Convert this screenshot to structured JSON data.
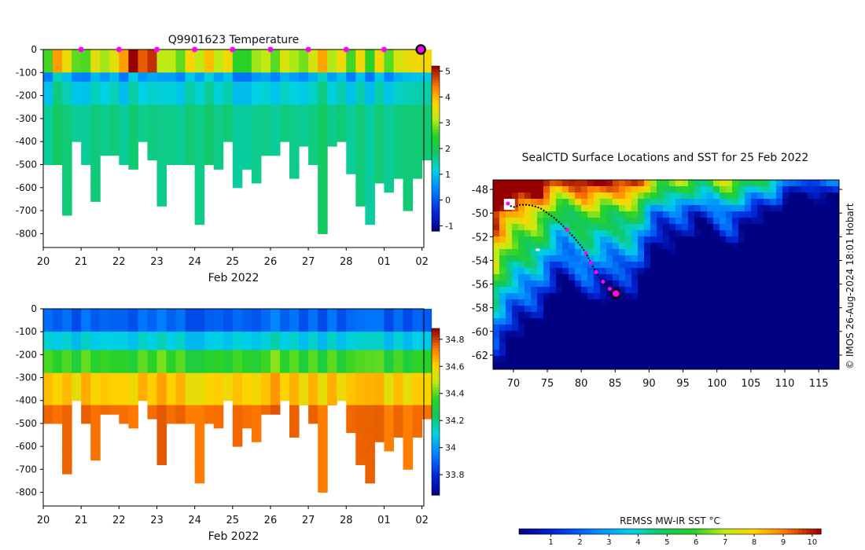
{
  "chart_data": [
    {
      "type": "heatmap",
      "title": "Q9901623  Temperature",
      "xlabel": "Feb 2022",
      "x_tick_labels": [
        "20",
        "21",
        "22",
        "23",
        "24",
        "25",
        "26",
        "27",
        "28",
        "01",
        "02"
      ],
      "x_range": [
        20,
        30.05
      ],
      "ylim": [
        0,
        -860
      ],
      "y_ticks": [
        0,
        -100,
        -200,
        -300,
        -400,
        -500,
        -600,
        -700,
        -800
      ],
      "colorbar": {
        "ticks": [
          -1,
          0,
          1,
          2,
          3,
          4,
          5
        ],
        "range": [
          -1.2,
          5.2
        ]
      },
      "profile_markers_day": [
        21,
        22,
        23,
        24,
        25,
        26,
        27,
        28,
        29
      ],
      "current_position_day": 29.97,
      "profiles": [
        {
          "day": 20.0,
          "depth": 490
        },
        {
          "day": 20.25,
          "depth": 490
        },
        {
          "day": 20.5,
          "depth": 720
        },
        {
          "day": 20.75,
          "depth": 390
        },
        {
          "day": 21.0,
          "depth": 490
        },
        {
          "day": 21.25,
          "depth": 660
        },
        {
          "day": 21.5,
          "depth": 450
        },
        {
          "day": 21.75,
          "depth": 450
        },
        {
          "day": 22.0,
          "depth": 490
        },
        {
          "day": 22.25,
          "depth": 520
        },
        {
          "day": 22.5,
          "depth": 400
        },
        {
          "day": 22.75,
          "depth": 470
        },
        {
          "day": 23.0,
          "depth": 670
        },
        {
          "day": 23.25,
          "depth": 490
        },
        {
          "day": 23.5,
          "depth": 500
        },
        {
          "day": 23.75,
          "depth": 500
        },
        {
          "day": 24.0,
          "depth": 750
        },
        {
          "day": 24.25,
          "depth": 500
        },
        {
          "day": 24.5,
          "depth": 520
        },
        {
          "day": 24.75,
          "depth": 390
        },
        {
          "day": 25.0,
          "depth": 600
        },
        {
          "day": 25.25,
          "depth": 520
        },
        {
          "day": 25.5,
          "depth": 580
        },
        {
          "day": 25.75,
          "depth": 450
        },
        {
          "day": 26.0,
          "depth": 450
        },
        {
          "day": 26.25,
          "depth": 400
        },
        {
          "day": 26.5,
          "depth": 560
        },
        {
          "day": 26.75,
          "depth": 410
        },
        {
          "day": 27.0,
          "depth": 490
        },
        {
          "day": 27.25,
          "depth": 790
        },
        {
          "day": 27.5,
          "depth": 420
        },
        {
          "day": 27.75,
          "depth": 400
        },
        {
          "day": 28.0,
          "depth": 530
        },
        {
          "day": 28.25,
          "depth": 680
        },
        {
          "day": 28.5,
          "depth": 760
        },
        {
          "day": 28.75,
          "depth": 570
        },
        {
          "day": 29.0,
          "depth": 620
        },
        {
          "day": 29.25,
          "depth": 560
        },
        {
          "day": 29.5,
          "depth": 700
        },
        {
          "day": 29.75,
          "depth": 560
        },
        {
          "day": 30.0,
          "depth": 480
        }
      ]
    },
    {
      "type": "heatmap",
      "title": "",
      "xlabel": "Feb 2022",
      "x_tick_labels": [
        "20",
        "21",
        "22",
        "23",
        "24",
        "25",
        "26",
        "27",
        "28",
        "01",
        "02"
      ],
      "x_range": [
        20,
        30.05
      ],
      "ylim": [
        0,
        -860
      ],
      "y_ticks": [
        0,
        -100,
        -200,
        -300,
        -400,
        -500,
        -600,
        -700,
        -800
      ],
      "colorbar": {
        "ticks": [
          33.8,
          34,
          34.2,
          34.4,
          34.6,
          34.8
        ],
        "range": [
          33.65,
          34.88
        ]
      }
    },
    {
      "type": "heatmap",
      "title": "SealCTD Surface Locations and SST for 25 Feb 2022",
      "xlabel": "",
      "ylabel": "",
      "x_ticks": [
        70,
        75,
        80,
        85,
        90,
        95,
        100,
        105,
        110,
        115
      ],
      "y_ticks": [
        -48,
        -50,
        -52,
        -54,
        -56,
        -58,
        -60,
        -62
      ],
      "xlim": [
        67,
        118
      ],
      "ylim": [
        -63.2,
        -47.2
      ],
      "track": [
        [
          69.2,
          -49.2
        ],
        [
          69.6,
          -49.4
        ],
        [
          70.2,
          -49.5
        ],
        [
          71.0,
          -49.3
        ],
        [
          72.0,
          -49.3
        ],
        [
          73.0,
          -49.4
        ],
        [
          74.0,
          -49.6
        ],
        [
          75.0,
          -50.0
        ],
        [
          76.0,
          -50.4
        ],
        [
          77.0,
          -50.9
        ],
        [
          78.0,
          -51.5
        ],
        [
          79.0,
          -52.1
        ],
        [
          80.0,
          -52.8
        ],
        [
          80.8,
          -53.5
        ],
        [
          81.5,
          -54.3
        ],
        [
          82.3,
          -55.1
        ],
        [
          83.2,
          -55.9
        ],
        [
          84.2,
          -56.4
        ],
        [
          85.1,
          -56.8
        ]
      ],
      "daily_positions": [
        [
          69.2,
          -49.2
        ],
        [
          77.9,
          -51.4
        ],
        [
          80.7,
          -53.4
        ],
        [
          81.4,
          -54.2
        ],
        [
          82.2,
          -55.0
        ],
        [
          83.2,
          -55.8
        ],
        [
          84.2,
          -56.4
        ],
        [
          85.1,
          -56.8
        ]
      ],
      "current_position": [
        85.1,
        -56.8
      ],
      "colorbar": {
        "label": "REMSS MW-IR SST °C",
        "ticks": [
          1,
          2,
          3,
          4,
          5,
          6,
          7,
          8,
          9,
          10
        ],
        "range": [
          -0.1,
          10.3
        ]
      }
    }
  ],
  "credit": "© IMOS 26-Aug-2024 18:01 Hobart"
}
